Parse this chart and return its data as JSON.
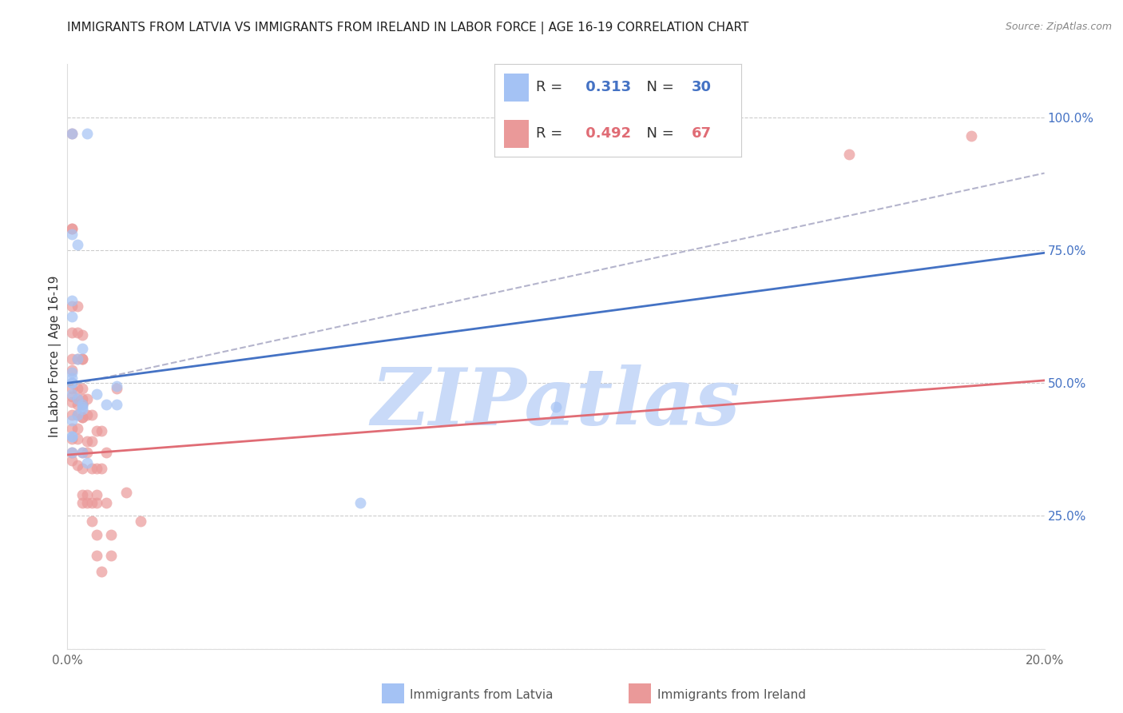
{
  "title": "IMMIGRANTS FROM LATVIA VS IMMIGRANTS FROM IRELAND IN LABOR FORCE | AGE 16-19 CORRELATION CHART",
  "source": "Source: ZipAtlas.com",
  "ylabel": "In Labor Force | Age 16-19",
  "xlim": [
    0.0,
    0.2
  ],
  "ylim": [
    0.0,
    1.1
  ],
  "latvia_R": 0.313,
  "latvia_N": 30,
  "ireland_R": 0.492,
  "ireland_N": 67,
  "latvia_color": "#a4c2f4",
  "ireland_color": "#ea9999",
  "latvia_line_color": "#4472c4",
  "ireland_line_color": "#e06c75",
  "dashed_line_color": "#b4b4cc",
  "watermark": "ZIPatlas",
  "watermark_color": "#c9daf8",
  "latvia_line": [
    0.0,
    0.2,
    0.5,
    0.745
  ],
  "ireland_line": [
    0.0,
    0.2,
    0.365,
    0.505
  ],
  "dashed_line": [
    0.0,
    0.2,
    0.495,
    0.895
  ],
  "right_yticks": [
    0.0,
    0.25,
    0.5,
    0.75,
    1.0
  ],
  "right_yticklabels": [
    "",
    "25.0%",
    "50.0%",
    "75.0%",
    "100.0%"
  ],
  "latvia_x": [
    0.001,
    0.004,
    0.001,
    0.002,
    0.001,
    0.001,
    0.003,
    0.002,
    0.001,
    0.001,
    0.001,
    0.001,
    0.001,
    0.002,
    0.003,
    0.003,
    0.003,
    0.002,
    0.001,
    0.001,
    0.001,
    0.001,
    0.003,
    0.004,
    0.006,
    0.01,
    0.01,
    0.1,
    0.06,
    0.008
  ],
  "latvia_y": [
    0.97,
    0.97,
    0.78,
    0.76,
    0.655,
    0.625,
    0.565,
    0.545,
    0.52,
    0.51,
    0.5,
    0.5,
    0.48,
    0.47,
    0.46,
    0.455,
    0.45,
    0.44,
    0.43,
    0.4,
    0.4,
    0.37,
    0.37,
    0.35,
    0.48,
    0.495,
    0.46,
    0.455,
    0.275,
    0.46
  ],
  "ireland_x": [
    0.001,
    0.001,
    0.001,
    0.001,
    0.001,
    0.001,
    0.001,
    0.001,
    0.001,
    0.001,
    0.001,
    0.001,
    0.001,
    0.001,
    0.001,
    0.002,
    0.002,
    0.002,
    0.002,
    0.002,
    0.002,
    0.002,
    0.002,
    0.002,
    0.002,
    0.003,
    0.003,
    0.003,
    0.003,
    0.003,
    0.003,
    0.003,
    0.003,
    0.003,
    0.003,
    0.003,
    0.004,
    0.004,
    0.004,
    0.004,
    0.004,
    0.004,
    0.005,
    0.005,
    0.005,
    0.005,
    0.005,
    0.006,
    0.006,
    0.006,
    0.006,
    0.006,
    0.006,
    0.007,
    0.007,
    0.007,
    0.008,
    0.008,
    0.009,
    0.009,
    0.01,
    0.012,
    0.015,
    0.16,
    0.185,
    0.003,
    0.003
  ],
  "ireland_y": [
    0.97,
    0.79,
    0.79,
    0.645,
    0.595,
    0.545,
    0.525,
    0.49,
    0.475,
    0.465,
    0.44,
    0.415,
    0.395,
    0.37,
    0.355,
    0.645,
    0.595,
    0.545,
    0.49,
    0.47,
    0.46,
    0.44,
    0.415,
    0.395,
    0.345,
    0.59,
    0.545,
    0.49,
    0.47,
    0.46,
    0.435,
    0.37,
    0.34,
    0.29,
    0.275,
    0.545,
    0.47,
    0.44,
    0.39,
    0.37,
    0.29,
    0.275,
    0.44,
    0.39,
    0.34,
    0.275,
    0.24,
    0.41,
    0.34,
    0.29,
    0.275,
    0.215,
    0.175,
    0.41,
    0.34,
    0.145,
    0.37,
    0.275,
    0.215,
    0.175,
    0.49,
    0.295,
    0.24,
    0.93,
    0.965,
    0.46,
    0.435
  ]
}
